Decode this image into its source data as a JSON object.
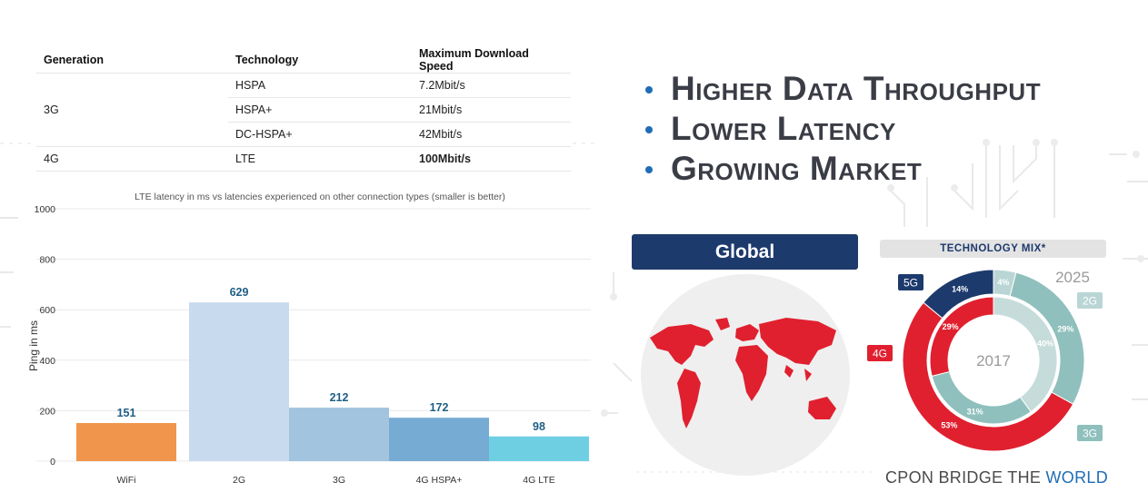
{
  "table": {
    "headers": [
      "Generation",
      "Technology",
      "Maximum Download Speed"
    ],
    "rows": [
      {
        "generation": "3G",
        "technology": "HSPA",
        "speed": "7.2Mbit/s"
      },
      {
        "generation": "",
        "technology": "HSPA+",
        "speed": "21Mbit/s"
      },
      {
        "generation": "",
        "technology": "DC-HSPA+",
        "speed": "42Mbit/s"
      },
      {
        "generation": "4G",
        "technology": "LTE",
        "speed": "100Mbit/s"
      }
    ]
  },
  "bullets": [
    "Higher Data Throughput",
    "Lower Latency",
    "Growing Market"
  ],
  "chart_data": [
    {
      "type": "bar",
      "title": "LTE latency in ms vs latencies experienced on other connection types (smaller is better)",
      "ylabel": "Ping in ms",
      "xlabel": "",
      "categories": [
        "WiFi",
        "2G",
        "3G",
        "4G HSPA+",
        "4G LTE"
      ],
      "values": [
        151,
        629,
        212,
        172,
        98
      ],
      "colors": [
        "#f0964c",
        "#c8daee",
        "#a3c4de",
        "#76abd3",
        "#6ecfe3"
      ],
      "ylim": [
        0,
        1000
      ],
      "yticks": [
        0,
        200,
        400,
        600,
        800,
        1000
      ],
      "grid": true,
      "data_labels": true
    },
    {
      "type": "pie",
      "title": "TECHNOLOGY MIX*",
      "rings": [
        {
          "name": "2025",
          "slices": [
            {
              "label": "5G",
              "value": 14,
              "color": "#1d3a6d"
            },
            {
              "label": "2G",
              "value": 4,
              "color": "#b9d6d5"
            },
            {
              "label": "3G",
              "value": 29,
              "color": "#8fc0bd"
            },
            {
              "label": "4G",
              "value": 53,
              "color": "#e0202f"
            }
          ]
        },
        {
          "name": "2017",
          "slices": [
            {
              "label": "4G",
              "value": 29,
              "color": "#e0202f"
            },
            {
              "label": "2G",
              "value": 40,
              "color": "#c5dcdb"
            },
            {
              "label": "3G",
              "value": 31,
              "color": "#8fc0bd"
            }
          ]
        }
      ],
      "outer_labels": [
        "5G",
        "2G",
        "4G",
        "3G"
      ]
    }
  ],
  "global_panel": {
    "title": "Global"
  },
  "footer": {
    "text_main": "CPON BRIDGE THE ",
    "text_accent": "WORLD"
  },
  "colors": {
    "accent_blue": "#1f6db5",
    "navy": "#1d3a6d",
    "red": "#e0202f"
  }
}
